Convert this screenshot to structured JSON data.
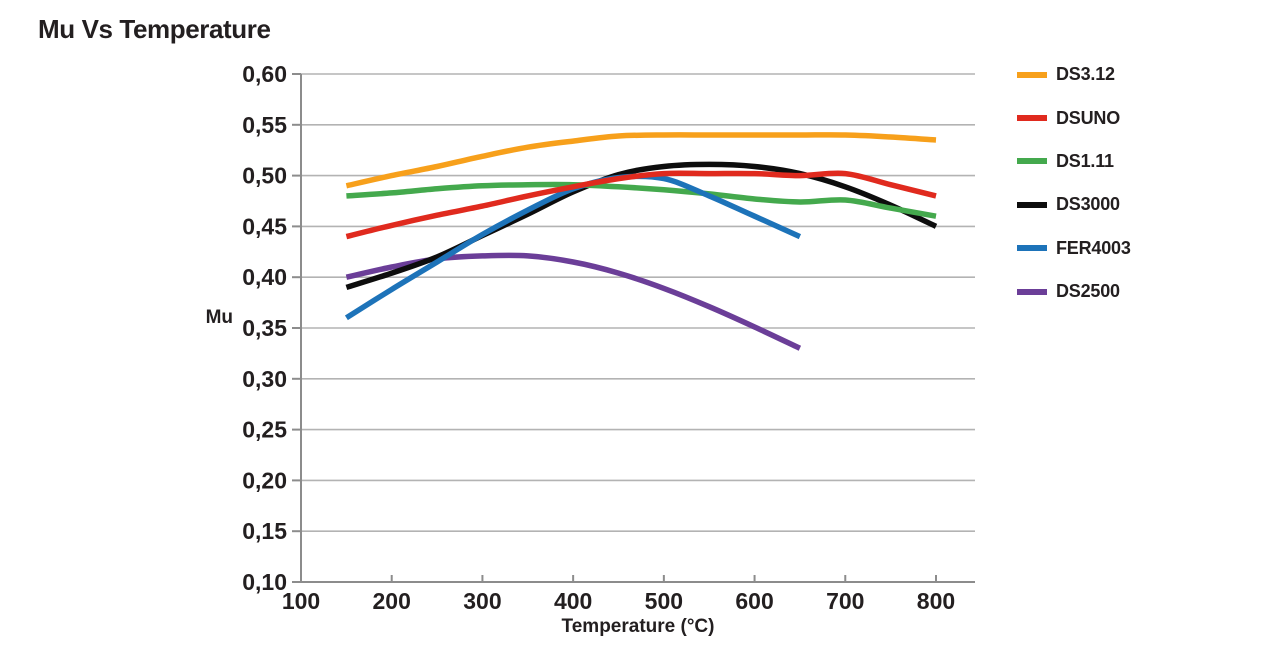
{
  "chart_data": {
    "type": "line",
    "title": "Mu Vs Temperature",
    "xlabel": "Temperature (°C)",
    "ylabel": "Mu",
    "xlim": [
      100,
      843
    ],
    "ylim": [
      0.1,
      0.6
    ],
    "grid": "horizontal-only",
    "legend_position": "right-outside",
    "text_color": "#231f20",
    "grid_color": "#b3b3b3",
    "axis_color": "#8c8c8c",
    "x_ticks": [
      {
        "v": 100,
        "label": "100"
      },
      {
        "v": 200,
        "label": "200"
      },
      {
        "v": 300,
        "label": "300"
      },
      {
        "v": 400,
        "label": "400"
      },
      {
        "v": 500,
        "label": "500"
      },
      {
        "v": 600,
        "label": "600"
      },
      {
        "v": 700,
        "label": "700"
      },
      {
        "v": 800,
        "label": "800"
      }
    ],
    "y_ticks": [
      {
        "v": 0.1,
        "label": "0,10"
      },
      {
        "v": 0.15,
        "label": "0,15"
      },
      {
        "v": 0.2,
        "label": "0,20"
      },
      {
        "v": 0.25,
        "label": "0,25"
      },
      {
        "v": 0.3,
        "label": "0,30"
      },
      {
        "v": 0.35,
        "label": "0,35"
      },
      {
        "v": 0.4,
        "label": "0,40"
      },
      {
        "v": 0.45,
        "label": "0,45"
      },
      {
        "v": 0.5,
        "label": "0,50"
      },
      {
        "v": 0.55,
        "label": "0,55"
      },
      {
        "v": 0.6,
        "label": "0,60"
      }
    ],
    "series": [
      {
        "name": "DS3.12",
        "color": "#f7a01b",
        "x": [
          150,
          200,
          250,
          300,
          350,
          400,
          450,
          500,
          550,
          600,
          650,
          700,
          750,
          800
        ],
        "y": [
          0.49,
          0.5,
          0.509,
          0.519,
          0.528,
          0.534,
          0.539,
          0.54,
          0.54,
          0.54,
          0.54,
          0.54,
          0.538,
          0.535
        ]
      },
      {
        "name": "DSUNO",
        "color": "#e02a1e",
        "x": [
          150,
          200,
          250,
          300,
          350,
          400,
          450,
          500,
          550,
          600,
          650,
          700,
          750,
          800
        ],
        "y": [
          0.44,
          0.451,
          0.461,
          0.47,
          0.48,
          0.489,
          0.497,
          0.502,
          0.502,
          0.502,
          0.5,
          0.502,
          0.491,
          0.48
        ]
      },
      {
        "name": "DS1.11",
        "color": "#44a94d",
        "x": [
          150,
          200,
          250,
          300,
          350,
          400,
          450,
          500,
          550,
          600,
          650,
          700,
          750,
          800
        ],
        "y": [
          0.48,
          0.483,
          0.487,
          0.49,
          0.491,
          0.491,
          0.489,
          0.486,
          0.482,
          0.477,
          0.474,
          0.476,
          0.468,
          0.46
        ]
      },
      {
        "name": "DS3000",
        "color": "#0d0d0d",
        "x": [
          150,
          200,
          250,
          300,
          350,
          400,
          450,
          500,
          550,
          600,
          650,
          700,
          750,
          800
        ],
        "y": [
          0.39,
          0.404,
          0.42,
          0.441,
          0.462,
          0.484,
          0.501,
          0.509,
          0.511,
          0.509,
          0.502,
          0.489,
          0.471,
          0.45
        ]
      },
      {
        "name": "FER4003",
        "color": "#1d73b9",
        "x": [
          150,
          200,
          250,
          300,
          350,
          400,
          450,
          500,
          550,
          600,
          650
        ],
        "y": [
          0.36,
          0.388,
          0.415,
          0.442,
          0.466,
          0.487,
          0.498,
          0.497,
          0.48,
          0.46,
          0.44
        ]
      },
      {
        "name": "DS2500",
        "color": "#6b3e98",
        "x": [
          150,
          200,
          250,
          300,
          350,
          400,
          450,
          500,
          550,
          600,
          650
        ],
        "y": [
          0.4,
          0.41,
          0.418,
          0.421,
          0.421,
          0.415,
          0.404,
          0.389,
          0.371,
          0.351,
          0.33
        ]
      }
    ],
    "draw_order": [
      "DS2500",
      "DS3000",
      "DS1.11",
      "FER4003",
      "DSUNO",
      "DS3.12"
    ]
  }
}
